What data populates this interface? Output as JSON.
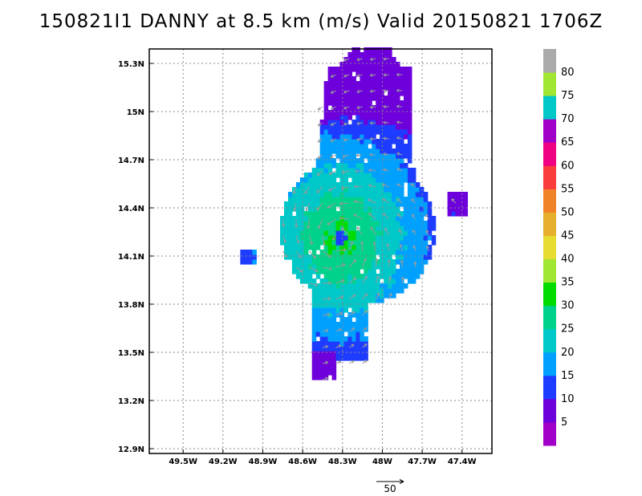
{
  "title": "150821I1 DANNY at 8.5 km (m/s) Valid 20150821  1706Z",
  "chart_data": {
    "type": "heatmap",
    "title": "150821I1 DANNY at 8.5 km (m/s) Valid 20150821  1706Z",
    "xlabel": "",
    "ylabel": "",
    "x_ticks": [
      "49.5W",
      "49.2W",
      "48.9W",
      "48.6W",
      "48.3W",
      "48W",
      "47.7W",
      "47.4W"
    ],
    "x_tick_values": [
      -49.5,
      -49.2,
      -48.9,
      -48.6,
      -48.3,
      -48.0,
      -47.7,
      -47.4
    ],
    "y_ticks": [
      "12.9N",
      "13.2N",
      "13.5N",
      "13.8N",
      "14.1N",
      "14.4N",
      "14.7N",
      "15N",
      "15.3N"
    ],
    "y_tick_values": [
      12.9,
      13.2,
      13.5,
      13.8,
      14.1,
      14.4,
      14.7,
      15.0,
      15.3
    ],
    "xlim": [
      -49.755,
      -47.175
    ],
    "ylim": [
      12.87,
      15.39
    ],
    "grid": true,
    "storm_center": {
      "lon": -48.33,
      "lat": 14.2
    },
    "max_wind_ms": 32,
    "colorbar": {
      "labels": [
        "5",
        "10",
        "15",
        "20",
        "25",
        "30",
        "35",
        "40",
        "45",
        "50",
        "55",
        "60",
        "65",
        "70",
        "75",
        "80"
      ],
      "colors": [
        "#a000c8",
        "#6e00dc",
        "#1e3cff",
        "#00a0ff",
        "#00c8c8",
        "#00d28c",
        "#00dc00",
        "#a0e632",
        "#e6dc32",
        "#e6af2d",
        "#f08228",
        "#fa3c3c",
        "#f00082",
        "#a000c8",
        "#00c8c8",
        "#a0e632",
        "#aaaaaa"
      ]
    },
    "vector_reference": {
      "label": "50",
      "units": "m/s"
    }
  }
}
